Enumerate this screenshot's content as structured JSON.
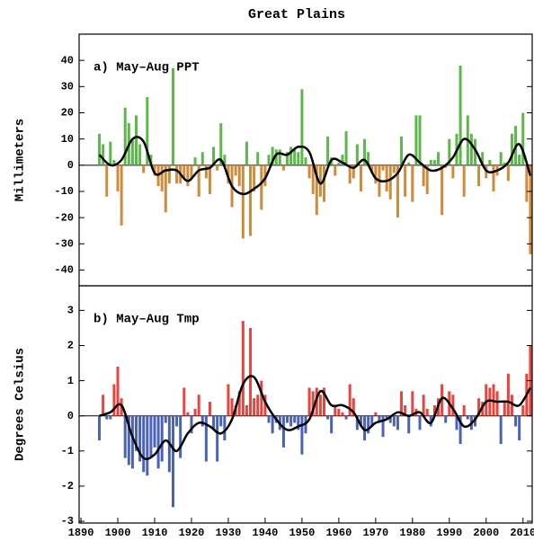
{
  "title": "Great Plains",
  "chart_data": [
    {
      "type": "bar",
      "label": "a) May–Aug PPT",
      "ylabel": "Millimeters",
      "x": [
        1895,
        1896,
        1897,
        1898,
        1899,
        1900,
        1901,
        1902,
        1903,
        1904,
        1905,
        1906,
        1907,
        1908,
        1909,
        1910,
        1911,
        1912,
        1913,
        1914,
        1915,
        1916,
        1917,
        1918,
        1919,
        1920,
        1921,
        1922,
        1923,
        1924,
        1925,
        1926,
        1927,
        1928,
        1929,
        1930,
        1931,
        1932,
        1933,
        1934,
        1935,
        1936,
        1937,
        1938,
        1939,
        1940,
        1941,
        1942,
        1943,
        1944,
        1945,
        1946,
        1947,
        1948,
        1949,
        1950,
        1951,
        1952,
        1953,
        1954,
        1955,
        1956,
        1957,
        1958,
        1959,
        1960,
        1961,
        1962,
        1963,
        1964,
        1965,
        1966,
        1967,
        1968,
        1969,
        1970,
        1971,
        1972,
        1973,
        1974,
        1975,
        1976,
        1977,
        1978,
        1979,
        1980,
        1981,
        1982,
        1983,
        1984,
        1985,
        1986,
        1987,
        1988,
        1989,
        1990,
        1991,
        1992,
        1993,
        1994,
        1995,
        1996,
        1997,
        1998,
        1999,
        2000,
        2001,
        2002,
        2003,
        2004,
        2005,
        2006,
        2007,
        2008,
        2009,
        2010,
        2011,
        2012
      ],
      "values": [
        12,
        8,
        -12,
        9,
        2,
        -10,
        -23,
        22,
        16,
        10,
        19,
        8,
        -3,
        26,
        4,
        -4,
        -8,
        -10,
        -18,
        -7,
        37,
        -7,
        -7,
        -5,
        -8,
        -5,
        3,
        -12,
        5,
        -5,
        -11,
        7,
        -2,
        16,
        4,
        -7,
        -16,
        -4,
        -8,
        -28,
        9,
        -27,
        -10,
        5,
        -17,
        -8,
        4,
        7,
        6,
        6,
        -2,
        5,
        7,
        6,
        5,
        29,
        3,
        -5,
        -11,
        -19,
        -12,
        -14,
        11,
        3,
        -4,
        1,
        4,
        13,
        -7,
        -5,
        8,
        -10,
        10,
        5,
        -3,
        -7,
        -12,
        -2,
        -10,
        -13,
        -3,
        -20,
        11,
        -12,
        1,
        -14,
        19,
        19,
        -8,
        -11,
        2,
        2,
        5,
        -19,
        -1,
        10,
        -5,
        12,
        38,
        -12,
        19,
        12,
        10,
        -8,
        5,
        -5,
        2,
        -10,
        -4,
        5,
        1,
        -6,
        12,
        15,
        4,
        20,
        -14,
        -34
      ],
      "color_positive": "#5cb84a",
      "color_negative": "#d08a3c",
      "curve": {
        "color": "#000000",
        "x": [
          1895,
          1898,
          1901,
          1904,
          1907,
          1910,
          1913,
          1916,
          1919,
          1922,
          1925,
          1928,
          1931,
          1934,
          1937,
          1940,
          1943,
          1946,
          1949,
          1952,
          1955,
          1958,
          1961,
          1964,
          1967,
          1970,
          1973,
          1976,
          1979,
          1982,
          1985,
          1988,
          1991,
          1994,
          1997,
          2000,
          2003,
          2006,
          2009,
          2012
        ],
        "values": [
          4,
          0,
          2,
          10,
          9,
          -3,
          -2,
          -2,
          -6,
          -2,
          -1,
          2,
          -8,
          -11,
          -9,
          -5,
          4,
          4,
          7,
          5,
          -7,
          2,
          1,
          -1,
          2,
          -5,
          -6,
          -3,
          4,
          1,
          -2,
          -1,
          3,
          10,
          6,
          -2,
          -2,
          1,
          8,
          -4
        ]
      },
      "xlim": [
        1889.5,
        2012.5
      ],
      "ylim": [
        -46,
        50
      ],
      "yticks": [
        -40,
        -30,
        -20,
        -10,
        0,
        10,
        20,
        30,
        40
      ]
    },
    {
      "type": "bar",
      "label": "b) May–Aug Tmp",
      "ylabel": "Degrees Celsius",
      "x": [
        1895,
        1896,
        1897,
        1898,
        1899,
        1900,
        1901,
        1902,
        1903,
        1904,
        1905,
        1906,
        1907,
        1908,
        1909,
        1910,
        1911,
        1912,
        1913,
        1914,
        1915,
        1916,
        1917,
        1918,
        1919,
        1920,
        1921,
        1922,
        1923,
        1924,
        1925,
        1926,
        1927,
        1928,
        1929,
        1930,
        1931,
        1932,
        1933,
        1934,
        1935,
        1936,
        1937,
        1938,
        1939,
        1940,
        1941,
        1942,
        1943,
        1944,
        1945,
        1946,
        1947,
        1948,
        1949,
        1950,
        1951,
        1952,
        1953,
        1954,
        1955,
        1956,
        1957,
        1958,
        1959,
        1960,
        1961,
        1962,
        1963,
        1964,
        1965,
        1966,
        1967,
        1968,
        1969,
        1970,
        1971,
        1972,
        1973,
        1974,
        1975,
        1976,
        1977,
        1978,
        1979,
        1980,
        1981,
        1982,
        1983,
        1984,
        1985,
        1986,
        1987,
        1988,
        1989,
        1990,
        1991,
        1992,
        1993,
        1994,
        1995,
        1996,
        1997,
        1998,
        1999,
        2000,
        2001,
        2002,
        2003,
        2004,
        2005,
        2006,
        2007,
        2008,
        2009,
        2010,
        2011,
        2012
      ],
      "values": [
        -0.7,
        0.6,
        -0.1,
        -0.1,
        0.9,
        1.4,
        0.5,
        -1.2,
        -1.4,
        -1.5,
        -1.0,
        -1.3,
        -1.6,
        -1.7,
        -1.2,
        -0.9,
        -1.5,
        -1.3,
        -0.2,
        -1.6,
        -2.6,
        -0.3,
        -1.2,
        0.8,
        0.1,
        -0.5,
        0.2,
        0.6,
        -0.3,
        -1.3,
        0.4,
        -0.4,
        -1.3,
        -0.3,
        -0.7,
        0.9,
        0.5,
        0.3,
        0.7,
        2.7,
        0.3,
        2.5,
        0.5,
        0.6,
        1.0,
        0.6,
        -0.2,
        -0.5,
        -0.2,
        -0.4,
        -0.9,
        -0.2,
        -0.3,
        -0.2,
        -0.4,
        -1.1,
        -0.5,
        0.8,
        0.7,
        0.8,
        0.6,
        0.8,
        -0.1,
        -0.5,
        0.3,
        0.2,
        0.1,
        -0.1,
        0.9,
        0.5,
        -0.4,
        -0.3,
        -0.7,
        -0.5,
        -0.3,
        0.1,
        -0.2,
        -0.6,
        -0.1,
        -0.2,
        -0.3,
        -0.4,
        0.7,
        0.3,
        -0.5,
        0.7,
        0.2,
        -0.4,
        0.6,
        0.2,
        -0.3,
        0.3,
        0.5,
        0.9,
        -0.2,
        0.7,
        0.6,
        -0.4,
        -0.8,
        0.3,
        -0.1,
        -0.4,
        -0.3,
        0.5,
        0.4,
        0.9,
        0.8,
        0.9,
        0.7,
        -0.8,
        0.4,
        1.2,
        0.6,
        -0.3,
        -0.7,
        0.3,
        1.2,
        2.0
      ],
      "color_positive": "#e8433c",
      "color_negative": "#4a62b8",
      "curve": {
        "color": "#000000",
        "x": [
          1895,
          1898,
          1901,
          1904,
          1907,
          1910,
          1913,
          1916,
          1919,
          1922,
          1925,
          1928,
          1931,
          1934,
          1937,
          1940,
          1943,
          1946,
          1949,
          1952,
          1955,
          1958,
          1961,
          1964,
          1967,
          1970,
          1973,
          1976,
          1979,
          1982,
          1985,
          1988,
          1991,
          1994,
          1997,
          2000,
          2003,
          2006,
          2009,
          2012
        ],
        "values": [
          0,
          0.1,
          0.3,
          -0.6,
          -1.2,
          -1.1,
          -0.7,
          -1.0,
          -0.5,
          -0.2,
          -0.3,
          -0.5,
          -0.1,
          0.9,
          1.1,
          0.4,
          -0.1,
          -0.4,
          -0.3,
          -0.1,
          0.7,
          0.3,
          0.3,
          0.1,
          -0.4,
          -0.2,
          -0.1,
          0.1,
          0,
          0.1,
          -0.2,
          0.5,
          0.2,
          -0.3,
          -0.1,
          0.4,
          0.4,
          0.4,
          0.3,
          0.8
        ]
      },
      "xlim": [
        1889.5,
        2012.5
      ],
      "ylim": [
        -3.05,
        3.7
      ],
      "yticks": [
        -3,
        -2,
        -1,
        0,
        1,
        2,
        3
      ],
      "xticks": [
        1890,
        1900,
        1910,
        1920,
        1930,
        1940,
        1950,
        1960,
        1970,
        1980,
        1990,
        2000,
        2010
      ]
    }
  ]
}
